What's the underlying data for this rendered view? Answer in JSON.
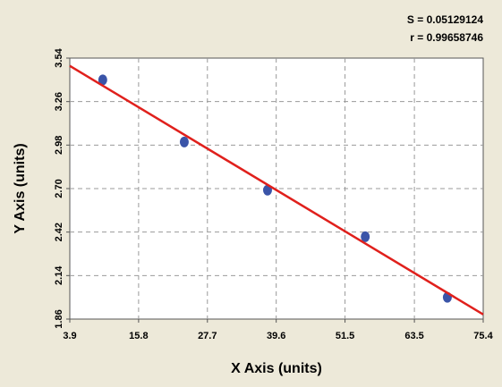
{
  "chart_data": {
    "type": "scatter",
    "xlabel": "X Axis (units)",
    "ylabel": "Y Axis (units)",
    "annotations": [
      "S = 0.05129124",
      "r = 0.99658746"
    ],
    "series": [
      {
        "color": "#3a54a8",
        "x": [
          9.6,
          23.7,
          38.1,
          55.0,
          69.2
        ],
        "values": [
          3.4,
          3.0,
          2.69,
          2.39,
          2.0
        ]
      },
      {
        "color": "#e0201c",
        "line": true,
        "x": [
          3.9,
          75.4
        ],
        "values": [
          3.49,
          1.89
        ]
      }
    ],
    "xlim": [
      3.9,
      75.4
    ],
    "xticks": [
      3.9,
      15.8,
      27.7,
      39.6,
      51.5,
      63.5,
      75.4
    ],
    "ylim": [
      1.86,
      3.54
    ],
    "yticks": [
      1.86,
      2.14,
      2.42,
      {
        "value": 2.7,
        "label": "2.70"
      },
      2.98,
      3.26,
      3.54
    ],
    "grid": true
  }
}
